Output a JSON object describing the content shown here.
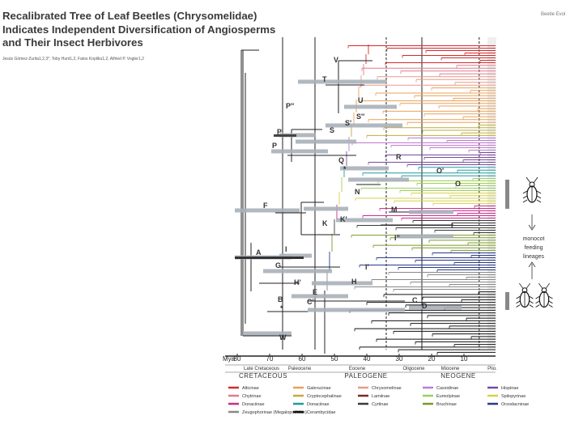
{
  "header": {
    "title_lines": [
      "Recalibrated Tree of Leaf Beetles (Chrysomelidae)",
      "Indicates Independent Diversification of Angiosperms",
      "and Their Insect Herbivores"
    ],
    "authors": "Jesús Gómez-Zurita1,2,3*, Toby Hunt1,2, Fatos Kopliku1,2, Alfried P. Vogler1,2",
    "journal": "Beetle Evol"
  },
  "node_labels": [
    "V",
    "T",
    "U",
    "P''",
    "S''",
    "S'",
    "P'",
    "S",
    "P",
    "R",
    "Q",
    "O'",
    "O",
    "N",
    "F",
    "M",
    "K'",
    "K",
    "L",
    "I''",
    "A",
    "I",
    "G",
    "I'",
    "H'",
    "H",
    "E",
    "B",
    "C'",
    "C",
    "D",
    "W"
  ],
  "axis": {
    "unit_label": "Mya",
    "tick_labels": [
      "80",
      "70",
      "60",
      "50",
      "40",
      "30",
      "20",
      "10"
    ],
    "epochs": [
      "Late Cretaceous",
      "Paleocene",
      "Eocene",
      "Oligocene",
      "Miocene",
      "Plio."
    ],
    "periods": [
      "CRETACEOUS",
      "PALEOGENE",
      "NEOGENE"
    ]
  },
  "side_annotation": "monocot feeding lineages",
  "legend": [
    {
      "name": "Alticinae",
      "color": "#d12b2b"
    },
    {
      "name": "Galerucinae",
      "color": "#e8a15a"
    },
    {
      "name": "Chrysomelinae",
      "color": "#e99a8a"
    },
    {
      "name": "Cassidinae",
      "color": "#c07ad0"
    },
    {
      "name": "Hispinae",
      "color": "#7a4b9e"
    },
    {
      "name": "Chytrinae",
      "color": "#e07b8e"
    },
    {
      "name": "Cryptocephalinae",
      "color": "#bfae3a"
    },
    {
      "name": "Lamiinae",
      "color": "#7b2a2a"
    },
    {
      "name": "Eumolpinae",
      "color": "#9fcf5a"
    },
    {
      "name": "Spilopyrinae",
      "color": "#d6d048"
    },
    {
      "name": "Donaciinae",
      "color": "#cc2c8c"
    },
    {
      "name": "Donaciinae",
      "color": "#1f9aa0"
    },
    {
      "name": "Cyrtinae",
      "color": "#3a3a3a"
    },
    {
      "name": "Bruchinae",
      "color": "#7a9a2a"
    },
    {
      "name": "Orsodacninae",
      "color": "#2a3a8a"
    },
    {
      "name": "Zeugophorinae (Megalopodidae)",
      "color": "#888888"
    },
    {
      "name": "Cerambycidae",
      "color": "#111111"
    }
  ]
}
